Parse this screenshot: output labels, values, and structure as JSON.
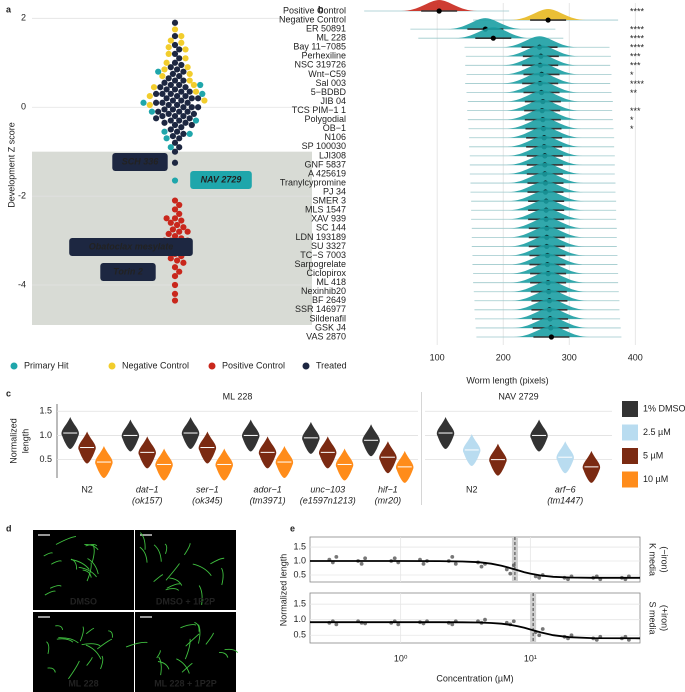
{
  "panel_labels": [
    "a",
    "b",
    "c",
    "d",
    "e"
  ],
  "chart_data": [
    {
      "type": "swarm",
      "ylabel": "Development Z score",
      "ylim": [
        -4.9,
        2.3
      ],
      "yticks": [
        -4,
        -2,
        0,
        2
      ],
      "grid": true,
      "threshold": -1,
      "legend": "bottom",
      "series": [
        {
          "name": "Primary Hit",
          "color": "#1fa6ab",
          "values": [
            0.8,
            0.5,
            0.3,
            0.1,
            -0.1,
            -0.3,
            -0.55,
            -0.6,
            -0.7,
            -0.9,
            -1.65
          ]
        },
        {
          "name": "Negative Control",
          "color": "#f2cd2c",
          "values": [
            1.75,
            1.6,
            1.45,
            1.35,
            1.2,
            1.1,
            1.0,
            0.9,
            0.85,
            0.75,
            0.7,
            0.6,
            0.5,
            0.45,
            0.35,
            0.25,
            0.15,
            0.05,
            1.5,
            1.3
          ]
        },
        {
          "name": "Positive Control",
          "color": "#c9271c",
          "values": [
            -2.1,
            -2.2,
            -2.3,
            -2.4,
            -2.5,
            -2.55,
            -2.6,
            -2.65,
            -2.7,
            -2.75,
            -2.8,
            -2.85,
            -2.9,
            -2.95,
            -3.0,
            -3.0,
            -3.05,
            -3.1,
            -3.15,
            -3.2,
            -3.25,
            -3.3,
            -3.35,
            -3.4,
            -3.45,
            -3.5,
            -3.6,
            -3.7,
            -3.8,
            -4.0,
            -4.2,
            -4.35,
            -2.5,
            -2.8,
            -3.0,
            -3.2
          ]
        },
        {
          "name": "Treated",
          "color": "#1d2741",
          "values": [
            1.9,
            1.6,
            1.4,
            1.3,
            1.2,
            1.1,
            1.0,
            0.95,
            0.9,
            0.85,
            0.8,
            0.75,
            0.7,
            0.65,
            0.6,
            0.6,
            0.55,
            0.5,
            0.5,
            0.45,
            0.45,
            0.4,
            0.4,
            0.35,
            0.35,
            0.3,
            0.3,
            0.3,
            0.25,
            0.25,
            0.2,
            0.2,
            0.2,
            0.15,
            0.15,
            0.1,
            0.1,
            0.1,
            0.05,
            0.05,
            0.0,
            0.0,
            0.0,
            -0.05,
            -0.05,
            -0.1,
            -0.1,
            -0.1,
            -0.15,
            -0.15,
            -0.2,
            -0.2,
            -0.2,
            -0.25,
            -0.25,
            -0.3,
            -0.3,
            -0.35,
            -0.35,
            -0.4,
            -0.4,
            -0.45,
            -0.5,
            -0.55,
            -0.6,
            -0.65,
            -0.7,
            -0.8,
            -0.9,
            -1.0,
            -1.25
          ]
        }
      ],
      "annotations": [
        {
          "text": "SCH 336",
          "color": "#1d2741"
        },
        {
          "text": "NAV 2729",
          "color": "#1fa6ab"
        },
        {
          "text": "Obatoclax mesylate",
          "color": "#1d2741"
        },
        {
          "text": "Torin 2",
          "color": "#1d2741"
        }
      ]
    },
    {
      "type": "ridge",
      "xlabel": "Worm length (pixels)",
      "xlim": [
        -32,
        445
      ],
      "xticks": [
        100,
        200,
        300,
        400
      ],
      "grid": true,
      "categories": [
        "Positive Control",
        "Negative Control",
        "ER 50891",
        "ML 228",
        "Bay 11−7085",
        "Perhexiline",
        "NSC 319726",
        "Wnt−C59",
        "Sal 003",
        "5−BDBD",
        "JIB 04",
        "TCS PIM−1 1",
        "Polygodial",
        "OB−1",
        "N106",
        "SP 100030",
        "LJI308",
        "GNF 5837",
        "A 425619",
        "Tranylcypromine",
        "PJ 34",
        "SMER 3",
        "MLS 1547",
        "XAV 939",
        "SC 144",
        "LDN 193189",
        "SU 3327",
        "TC−S 7003",
        "Sarpogrelate",
        "Ciclopirox",
        "ML 418",
        "Nexinhib20",
        "BF 2649",
        "SSR 146977",
        "Sildenafil",
        "GSK J4",
        "VAS 2870"
      ],
      "values": [
        103,
        268,
        173,
        185,
        255,
        257,
        256,
        258,
        256,
        258,
        260,
        259,
        260,
        261,
        262,
        262,
        263,
        263,
        263,
        264,
        264,
        265,
        265,
        265,
        266,
        266,
        266,
        267,
        267,
        268,
        268,
        269,
        270,
        270,
        271,
        272,
        273
      ],
      "colors": [
        "#c9271c",
        "#e8b820",
        "#1b9ea3",
        "#1b9ea3",
        "#1b9ea3",
        "#1b9ea3",
        "#1b9ea3",
        "#1b9ea3",
        "#1b9ea3",
        "#1b9ea3",
        "#1b9ea3",
        "#1b9ea3",
        "#1b9ea3",
        "#1b9ea3",
        "#1b9ea3",
        "#1b9ea3",
        "#1b9ea3",
        "#1b9ea3",
        "#1b9ea3",
        "#1b9ea3",
        "#1b9ea3",
        "#1b9ea3",
        "#1b9ea3",
        "#1b9ea3",
        "#1b9ea3",
        "#1b9ea3",
        "#1b9ea3",
        "#1b9ea3",
        "#1b9ea3",
        "#1b9ea3",
        "#1b9ea3",
        "#1b9ea3",
        "#1b9ea3",
        "#1b9ea3",
        "#1b9ea3",
        "#1b9ea3",
        "#1b9ea3"
      ],
      "stars": [
        "****",
        null,
        "****",
        "****",
        "****",
        "***",
        "***",
        "*",
        "****",
        "**",
        null,
        "***",
        "*",
        "*",
        null,
        null,
        null,
        null,
        null,
        null,
        null,
        null,
        null,
        null,
        null,
        null,
        null,
        null,
        null,
        null,
        null,
        null,
        null,
        null,
        null,
        null,
        null
      ]
    },
    {
      "type": "violin",
      "ylabel": [
        "Normalized",
        "length"
      ],
      "ylim": [
        0.12,
        1.65
      ],
      "yticks": [
        0.5,
        {
          "value": 1,
          "label": "1.0"
        },
        1.5
      ],
      "grid": true,
      "series": [
        {
          "name": "1% DMSO",
          "color": "#333333"
        },
        {
          "name": "2.5 µM",
          "color": "#b9dcf0"
        },
        {
          "name": "5 µM",
          "color": "#7b2a12"
        },
        {
          "name": "10 µM",
          "color": "#ff8c1a"
        }
      ],
      "groups": [
        {
          "title": "ML 228",
          "categories": [
            [
              "N2"
            ],
            [
              "dat−1",
              "(ok157)"
            ],
            [
              "ser−1",
              "(ok345)"
            ],
            [
              "ador−1",
              "(tm3971)"
            ],
            [
              "unc−103",
              "(e1597n1213)"
            ],
            [
              "hif−1",
              "(mr20)"
            ]
          ],
          "values": [
            [
              1.05,
              1.0,
              1.05,
              1.0,
              0.95,
              0.9
            ],
            [
              null,
              null,
              null,
              null,
              null,
              null
            ],
            [
              0.75,
              0.65,
              0.75,
              0.65,
              0.65,
              0.55
            ],
            [
              0.45,
              0.4,
              0.4,
              0.45,
              0.4,
              0.35
            ]
          ]
        },
        {
          "title": "NAV 2729",
          "categories": [
            [
              "N2"
            ],
            [
              "arf−6",
              "(tm1447)"
            ]
          ],
          "values": [
            [
              1.05,
              1.0
            ],
            [
              0.7,
              0.55
            ],
            [
              0.5,
              0.35
            ],
            [
              null,
              null
            ]
          ]
        }
      ]
    },
    {
      "type": "dose-response",
      "xlabel": "Concentration (µM)",
      "ylabel": "Normalized length",
      "log_x": true,
      "xlim": [
        0.2,
        70
      ],
      "xticks": [
        {
          "value": 1,
          "label": "10⁰"
        },
        {
          "value": 10,
          "label": "10¹"
        }
      ],
      "ylim": [
        0.25,
        1.86
      ],
      "yticks": [
        0.5,
        {
          "value": 1,
          "label": "1.0"
        },
        1.5
      ],
      "point_color": "#555555",
      "line_color": "#000000",
      "facets": [
        {
          "label": [
            "K media",
            "(−iron)"
          ],
          "ec50": 7.6,
          "x": [
            0.3,
            0.3,
            0.3,
            0.5,
            0.5,
            0.5,
            0.9,
            0.9,
            0.9,
            1.5,
            1.5,
            1.5,
            2.5,
            2.5,
            2.5,
            4.2,
            4.2,
            4.2,
            7,
            7,
            7,
            11.7,
            11.7,
            11.7,
            19.5,
            19.5,
            19.5,
            32.5,
            32.5,
            32.5,
            54,
            54,
            54
          ],
          "y": [
            1.05,
            0.95,
            1.15,
            1.0,
            0.9,
            1.1,
            1.0,
            1.1,
            0.95,
            1.05,
            0.9,
            1.0,
            1.0,
            1.15,
            0.9,
            0.95,
            0.8,
            0.9,
            0.7,
            0.55,
            0.85,
            0.45,
            0.4,
            0.5,
            0.4,
            0.35,
            0.45,
            0.4,
            0.45,
            0.35,
            0.4,
            0.35,
            0.45
          ],
          "fit_x": [
            0.2,
            0.5,
            1,
            2,
            3,
            4,
            5,
            6,
            7,
            8,
            9,
            10,
            12,
            15,
            20,
            30,
            70
          ],
          "fit_y": [
            1.0,
            1.0,
            1.0,
            0.997,
            0.985,
            0.957,
            0.905,
            0.832,
            0.749,
            0.669,
            0.602,
            0.55,
            0.483,
            0.437,
            0.41,
            0.402,
            0.4
          ]
        },
        {
          "label": [
            "S media",
            "(+iron)"
          ],
          "ec50": 10.5,
          "x": [
            0.3,
            0.3,
            0.3,
            0.5,
            0.5,
            0.5,
            0.9,
            0.9,
            0.9,
            1.5,
            1.5,
            1.5,
            2.5,
            2.5,
            2.5,
            4.2,
            4.2,
            4.2,
            7,
            7,
            7,
            11.7,
            11.7,
            11.7,
            19.5,
            19.5,
            19.5,
            32.5,
            32.5,
            32.5,
            54,
            54,
            54
          ],
          "y": [
            0.9,
            0.95,
            0.85,
            0.95,
            0.9,
            0.88,
            0.9,
            0.95,
            0.85,
            0.92,
            0.88,
            0.95,
            0.9,
            0.85,
            0.95,
            0.95,
            0.9,
            1.0,
            0.9,
            0.85,
            0.95,
            0.6,
            0.5,
            0.7,
            0.45,
            0.4,
            0.5,
            0.4,
            0.35,
            0.45,
            0.4,
            0.45,
            0.35
          ],
          "fit_x": [
            0.2,
            0.5,
            1,
            2,
            3,
            4,
            5,
            6,
            7,
            8,
            9,
            10,
            12,
            15,
            20,
            30,
            70
          ],
          "fit_y": [
            0.92,
            0.92,
            0.92,
            0.92,
            0.917,
            0.909,
            0.895,
            0.87,
            0.834,
            0.789,
            0.738,
            0.685,
            0.592,
            0.501,
            0.437,
            0.408,
            0.4
          ]
        }
      ]
    }
  ],
  "images": {
    "labels": [
      "DMSO",
      "DMSO + 1P2P",
      "ML 228",
      "ML 228 + 1P2P"
    ]
  }
}
